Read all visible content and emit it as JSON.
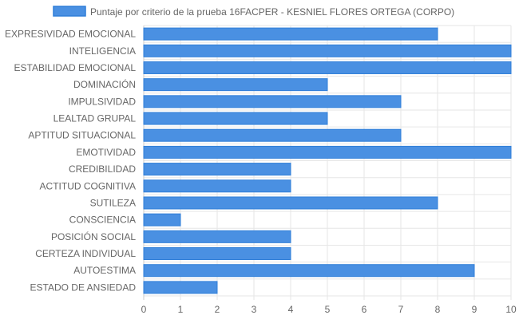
{
  "chart_data": {
    "type": "bar",
    "orientation": "horizontal",
    "categories": [
      "EXPRESIVIDAD EMOCIONAL",
      "INTELIGENCIA",
      "ESTABILIDAD EMOCIONAL",
      "DOMINACIÓN",
      "IMPULSIVIDAD",
      "LEALTAD GRUPAL",
      "APTITUD SITUACIONAL",
      "EMOTIVIDAD",
      "CREDIBILIDAD",
      "ACTITUD COGNITIVA",
      "SUTILEZA",
      "CONSCIENCIA",
      "POSICIÓN SOCIAL",
      "CERTEZA INDIVIDUAL",
      "AUTOESTIMA",
      "ESTADO DE ANSIEDAD"
    ],
    "series": [
      {
        "name": "Puntaje por criterio de la prueba 16FACPER - KESNIEL FLORES ORTEGA (CORPO)",
        "values": [
          8,
          10,
          10,
          5,
          7,
          5,
          7,
          10,
          4,
          4,
          8,
          1,
          4,
          4,
          9,
          2
        ],
        "color": "#4a90e2",
        "border_color": "#2f7ed8"
      }
    ],
    "xlim": [
      0,
      10
    ],
    "xticks": [
      "0",
      "1",
      "2",
      "3",
      "4",
      "5",
      "6",
      "7",
      "8",
      "9",
      "10"
    ],
    "grid": true,
    "legend_position": "top"
  },
  "colors": {
    "grid": "#e6e6e6",
    "axis": "#cccccc",
    "text": "#666666"
  }
}
